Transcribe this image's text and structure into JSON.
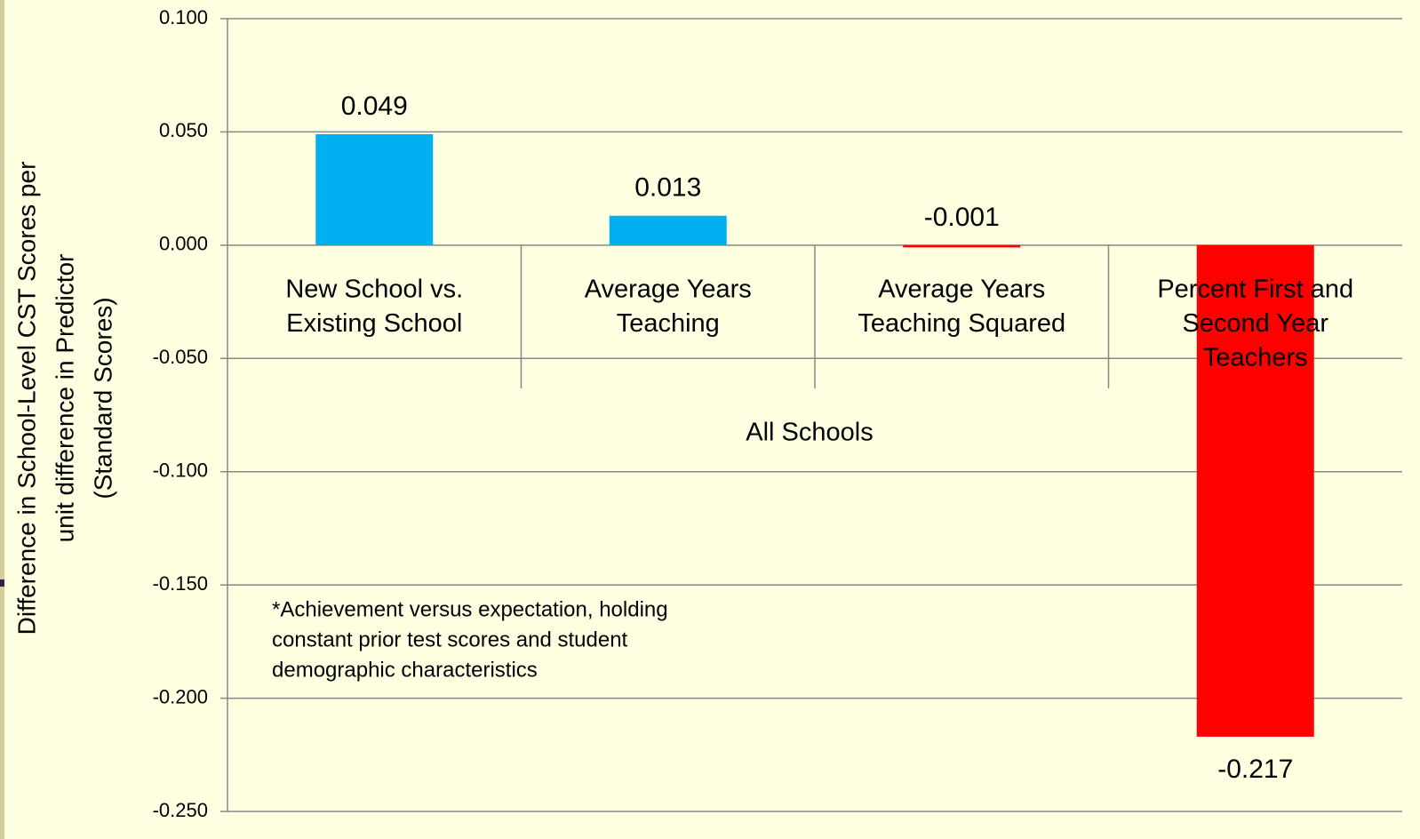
{
  "chart_data": {
    "type": "bar",
    "y_label": [
      "Difference in School-Level CST Scores per",
      "unit difference in Predictor",
      "(Standard Scores)"
    ],
    "categories": [
      [
        "New  School vs.",
        "Existing School"
      ],
      [
        "Average Years",
        "Teaching"
      ],
      [
        "Average Years",
        "Teaching Squared"
      ],
      [
        "Percent First and",
        "Second Year",
        "Teachers"
      ]
    ],
    "group_label": "All Schools",
    "values": [
      0.049,
      0.013,
      -0.001,
      -0.217
    ],
    "colors": [
      "#00B0F0",
      "#00B0F0",
      "#FF0000",
      "#FF0000"
    ],
    "ylim": [
      -0.25,
      0.1
    ],
    "yticks": [
      {
        "value": 0.1,
        "label": "0.100"
      },
      {
        "value": 0.05,
        "label": "0.050"
      },
      {
        "value": 0,
        "label": "0.000"
      },
      {
        "value": -0.05,
        "label": "-0.050"
      },
      {
        "value": -0.1,
        "label": "-0.100"
      },
      {
        "value": -0.15,
        "label": "-0.150"
      },
      {
        "value": -0.2,
        "label": "-0.200"
      },
      {
        "value": -0.25,
        "label": "-0.250"
      }
    ],
    "grid": true,
    "annotation": [
      "*Achievement versus expectation, holding",
      "constant prior test scores and student",
      "demographic characteristics"
    ]
  }
}
